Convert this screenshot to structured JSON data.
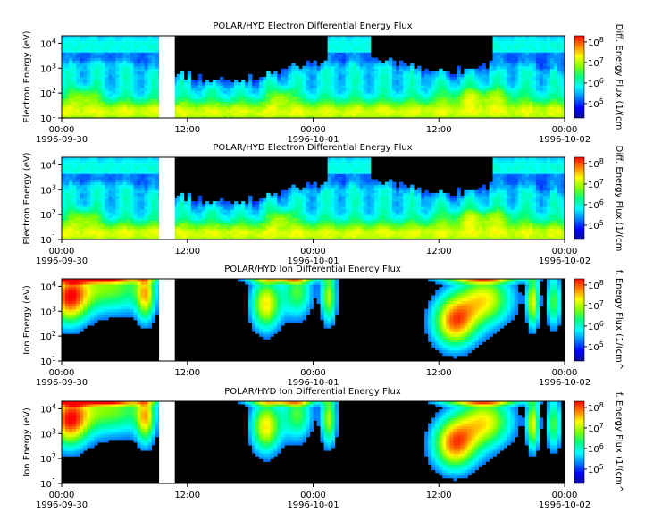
{
  "chart_data": [
    {
      "type": "heatmap",
      "title": "POLAR/HYD  Electron Differential Energy Flux",
      "ylabel": "Electron Energy (eV)",
      "colorbar_label": "Diff. Energy Flux (1/(cm",
      "y_scale": "log",
      "ylim": [
        10,
        20000
      ],
      "y_ticks": [
        {
          "v": 10,
          "b": "10",
          "e": "1"
        },
        {
          "v": 100,
          "b": "10",
          "e": "2"
        },
        {
          "v": 1000,
          "b": "10",
          "e": "3"
        },
        {
          "v": 10000,
          "b": "10",
          "e": "4"
        }
      ],
      "c_scale": "log",
      "clim": [
        20000,
        200000000
      ],
      "c_ticks": [
        {
          "v": 100000,
          "b": "10",
          "e": "5"
        },
        {
          "v": 1000000,
          "b": "10",
          "e": "6"
        },
        {
          "v": 10000000,
          "b": "10",
          "e": "7"
        },
        {
          "v": 100000000,
          "b": "10",
          "e": "8"
        }
      ],
      "x_ticks": [
        {
          "t": 0,
          "time": "00:00",
          "date": "1996-09-30"
        },
        {
          "t": 12,
          "time": "12:00",
          "date": ""
        },
        {
          "t": 24,
          "time": "00:00",
          "date": "1996-10-01"
        },
        {
          "t": 36,
          "time": "12:00",
          "date": ""
        },
        {
          "t": 48,
          "time": "00:00",
          "date": "1996-10-02"
        }
      ],
      "xlim_hours": [
        0,
        48
      ],
      "data_gaps_hours": [
        [
          9.3,
          10.8
        ]
      ],
      "species": "electron"
    },
    {
      "type": "heatmap",
      "title": "POLAR/HYD  Electron Differential Energy Flux",
      "ylabel": "Electron Energy (eV)",
      "colorbar_label": "Diff. Energy Flux (1/(cm",
      "y_scale": "log",
      "ylim": [
        10,
        20000
      ],
      "y_ticks": [
        {
          "v": 10,
          "b": "10",
          "e": "1"
        },
        {
          "v": 100,
          "b": "10",
          "e": "2"
        },
        {
          "v": 1000,
          "b": "10",
          "e": "3"
        },
        {
          "v": 10000,
          "b": "10",
          "e": "4"
        }
      ],
      "c_scale": "log",
      "clim": [
        20000,
        200000000
      ],
      "c_ticks": [
        {
          "v": 100000,
          "b": "10",
          "e": "5"
        },
        {
          "v": 1000000,
          "b": "10",
          "e": "6"
        },
        {
          "v": 10000000,
          "b": "10",
          "e": "7"
        },
        {
          "v": 100000000,
          "b": "10",
          "e": "8"
        }
      ],
      "x_ticks": [
        {
          "t": 0,
          "time": "00:00",
          "date": "1996-09-30"
        },
        {
          "t": 12,
          "time": "12:00",
          "date": ""
        },
        {
          "t": 24,
          "time": "00:00",
          "date": "1996-10-01"
        },
        {
          "t": 36,
          "time": "12:00",
          "date": ""
        },
        {
          "t": 48,
          "time": "00:00",
          "date": "1996-10-02"
        }
      ],
      "xlim_hours": [
        0,
        48
      ],
      "data_gaps_hours": [
        [
          9.3,
          10.8
        ]
      ],
      "species": "electron"
    },
    {
      "type": "heatmap",
      "title": "POLAR/HYD  Ion Differential Energy Flux",
      "ylabel": "Ion Energy (eV)",
      "colorbar_label": "f. Energy Flux (1/(cm^",
      "y_scale": "log",
      "ylim": [
        10,
        20000
      ],
      "y_ticks": [
        {
          "v": 10,
          "b": "10",
          "e": "1"
        },
        {
          "v": 100,
          "b": "10",
          "e": "2"
        },
        {
          "v": 1000,
          "b": "10",
          "e": "3"
        },
        {
          "v": 10000,
          "b": "10",
          "e": "4"
        }
      ],
      "c_scale": "log",
      "clim": [
        20000,
        200000000
      ],
      "c_ticks": [
        {
          "v": 100000,
          "b": "10",
          "e": "5"
        },
        {
          "v": 1000000,
          "b": "10",
          "e": "6"
        },
        {
          "v": 10000000,
          "b": "10",
          "e": "7"
        },
        {
          "v": 100000000,
          "b": "10",
          "e": "8"
        }
      ],
      "x_ticks": [
        {
          "t": 0,
          "time": "00:00",
          "date": "1996-09-30"
        },
        {
          "t": 12,
          "time": "12:00",
          "date": ""
        },
        {
          "t": 24,
          "time": "00:00",
          "date": "1996-10-01"
        },
        {
          "t": 36,
          "time": "12:00",
          "date": ""
        },
        {
          "t": 48,
          "time": "00:00",
          "date": "1996-10-02"
        }
      ],
      "xlim_hours": [
        0,
        48
      ],
      "data_gaps_hours": [
        [
          9.3,
          10.8
        ]
      ],
      "species": "ion"
    },
    {
      "type": "heatmap",
      "title": "POLAR/HYD  Ion Differential Energy Flux",
      "ylabel": "Ion Energy (eV)",
      "colorbar_label": "f. Energy Flux (1/(cm^",
      "y_scale": "log",
      "ylim": [
        10,
        20000
      ],
      "y_ticks": [
        {
          "v": 10,
          "b": "10",
          "e": "1"
        },
        {
          "v": 100,
          "b": "10",
          "e": "2"
        },
        {
          "v": 1000,
          "b": "10",
          "e": "3"
        },
        {
          "v": 10000,
          "b": "10",
          "e": "4"
        }
      ],
      "c_scale": "log",
      "clim": [
        20000,
        200000000
      ],
      "c_ticks": [
        {
          "v": 100000,
          "b": "10",
          "e": "5"
        },
        {
          "v": 1000000,
          "b": "10",
          "e": "6"
        },
        {
          "v": 10000000,
          "b": "10",
          "e": "7"
        },
        {
          "v": 100000000,
          "b": "10",
          "e": "8"
        }
      ],
      "x_ticks": [
        {
          "t": 0,
          "time": "00:00",
          "date": "1996-09-30"
        },
        {
          "t": 12,
          "time": "12:00",
          "date": ""
        },
        {
          "t": 24,
          "time": "00:00",
          "date": "1996-10-01"
        },
        {
          "t": 36,
          "time": "12:00",
          "date": ""
        },
        {
          "t": 48,
          "time": "00:00",
          "date": "1996-10-02"
        }
      ],
      "xlim_hours": [
        0,
        48
      ],
      "data_gaps_hours": [
        [
          9.3,
          10.8
        ]
      ],
      "species": "ion"
    }
  ],
  "colors": {
    "background": "#ffffff",
    "no_data": "#000000",
    "gap": "#ffffff",
    "colormap": [
      "#0a0aa0",
      "#0000ff",
      "#0080ff",
      "#00ffff",
      "#00ff80",
      "#80ff00",
      "#ffff00",
      "#ff8000",
      "#ff0000"
    ]
  }
}
